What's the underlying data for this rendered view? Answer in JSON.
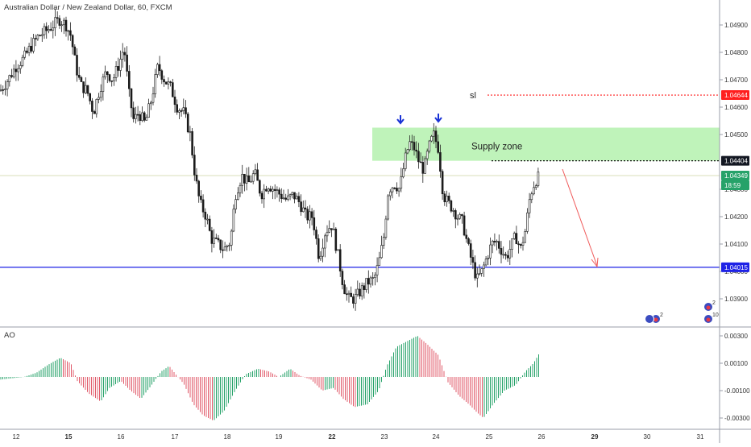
{
  "chart_title": "Australian Dollar / New Zealand Dollar, 60, FXCM",
  "indicator_title": "AO",
  "chart_data": {
    "type": "candlestick",
    "symbol": "AUDNZD",
    "timeframe": "60",
    "source": "FXCM",
    "price_axis": {
      "range": [
        1.0383,
        1.0498
      ],
      "ticks": [
        "1.04900",
        "1.04800",
        "1.04700",
        "1.04600",
        "1.04500",
        "1.04300",
        "1.04200",
        "1.04100",
        "1.04000",
        "1.03900"
      ]
    },
    "time_axis": {
      "ticks": [
        "12",
        "15",
        "16",
        "17",
        "18",
        "19",
        "22",
        "23",
        "24",
        "25",
        "26",
        "29",
        "30",
        "31"
      ],
      "bold_ticks": [
        "15",
        "22",
        "29"
      ]
    },
    "price_labels": [
      {
        "name": "sl",
        "value": "1.04644",
        "color": "#ff1f1f"
      },
      {
        "name": "supply-top",
        "value": "1.04404",
        "color": "#131722"
      },
      {
        "name": "current",
        "value": "1.04349",
        "color": "#26a269"
      },
      {
        "name": "countdown",
        "value": "18:59",
        "color": "#26a269"
      },
      {
        "name": "support",
        "value": "1.04015",
        "color": "#1e22e6"
      }
    ],
    "annotations": {
      "sl_label": "sl",
      "supply_label": "Supply zone",
      "supply_zone": {
        "low": 1.04404,
        "high": 1.04525,
        "from": "23",
        "to": "end"
      },
      "support_line": 1.04015,
      "sl_line": 1.04644,
      "entry_line": 1.04404
    },
    "close_path": [
      [
        0,
        1.0466
      ],
      [
        10,
        1.047
      ],
      [
        20,
        1.0475
      ],
      [
        30,
        1.0478
      ],
      [
        38,
        1.0482
      ],
      [
        48,
        1.0486
      ],
      [
        58,
        1.0488
      ],
      [
        66,
        1.049
      ],
      [
        74,
        1.0492
      ],
      [
        82,
        1.049
      ],
      [
        88,
        1.0486
      ],
      [
        94,
        1.0475
      ],
      [
        100,
        1.0468
      ],
      [
        108,
        1.0466
      ],
      [
        116,
        1.0458
      ],
      [
        124,
        1.0467
      ],
      [
        132,
        1.0473
      ],
      [
        140,
        1.047
      ],
      [
        148,
        1.0476
      ],
      [
        154,
        1.0482
      ],
      [
        160,
        1.0465
      ],
      [
        166,
        1.0455
      ],
      [
        172,
        1.0458
      ],
      [
        180,
        1.0454
      ],
      [
        188,
        1.0463
      ],
      [
        196,
        1.0475
      ],
      [
        204,
        1.047
      ],
      [
        212,
        1.0467
      ],
      [
        220,
        1.046
      ],
      [
        228,
        1.0458
      ],
      [
        236,
        1.045
      ],
      [
        242,
        1.0435
      ],
      [
        248,
        1.0425
      ],
      [
        256,
        1.042
      ],
      [
        262,
        1.0412
      ],
      [
        270,
        1.041
      ],
      [
        278,
        1.0408
      ],
      [
        286,
        1.0411
      ],
      [
        292,
        1.0428
      ],
      [
        300,
        1.0435
      ],
      [
        308,
        1.0432
      ],
      [
        316,
        1.0436
      ],
      [
        324,
        1.0428
      ],
      [
        332,
        1.0432
      ],
      [
        340,
        1.043
      ],
      [
        348,
        1.0428
      ],
      [
        356,
        1.0426
      ],
      [
        364,
        1.0428
      ],
      [
        372,
        1.0425
      ],
      [
        380,
        1.042
      ],
      [
        388,
        1.042
      ],
      [
        396,
        1.0405
      ],
      [
        404,
        1.0415
      ],
      [
        412,
        1.0417
      ],
      [
        420,
        1.0405
      ],
      [
        426,
        1.0395
      ],
      [
        432,
        1.039
      ],
      [
        440,
        1.039
      ],
      [
        448,
        1.0393
      ],
      [
        456,
        1.0396
      ],
      [
        464,
        1.0397
      ],
      [
        470,
        1.0403
      ],
      [
        476,
        1.0412
      ],
      [
        482,
        1.043
      ],
      [
        490,
        1.0432
      ],
      [
        496,
        1.043
      ],
      [
        502,
        1.044
      ],
      [
        508,
        1.0447
      ],
      [
        514,
        1.0445
      ],
      [
        520,
        1.044
      ],
      [
        526,
        1.0437
      ],
      [
        532,
        1.0445
      ],
      [
        538,
        1.045
      ],
      [
        544,
        1.0445
      ],
      [
        550,
        1.0428
      ],
      [
        556,
        1.0425
      ],
      [
        562,
        1.0423
      ],
      [
        568,
        1.042
      ],
      [
        574,
        1.0418
      ],
      [
        580,
        1.041
      ],
      [
        586,
        1.0403
      ],
      [
        592,
        1.0397
      ],
      [
        598,
        1.04
      ],
      [
        604,
        1.0405
      ],
      [
        610,
        1.041
      ],
      [
        616,
        1.0411
      ],
      [
        622,
        1.0408
      ],
      [
        628,
        1.0405
      ],
      [
        634,
        1.0409
      ],
      [
        640,
        1.0413
      ],
      [
        646,
        1.0408
      ],
      [
        652,
        1.0415
      ],
      [
        658,
        1.0428
      ],
      [
        664,
        1.0433
      ],
      [
        670,
        1.0435
      ]
    ],
    "ao": {
      "range": [
        -0.0034,
        0.0034
      ],
      "ticks": [
        "0.00300",
        "0.00100",
        "-0.00100",
        "-0.00300"
      ],
      "values": [
        [
          0,
          -0.0002
        ],
        [
          15,
          -0.0001
        ],
        [
          30,
          0.0
        ],
        [
          45,
          0.0003
        ],
        [
          60,
          0.0009
        ],
        [
          75,
          0.0014
        ],
        [
          88,
          0.001
        ],
        [
          96,
          -0.0003
        ],
        [
          110,
          -0.0012
        ],
        [
          125,
          -0.0018
        ],
        [
          136,
          -0.0008
        ],
        [
          150,
          -0.0003
        ],
        [
          162,
          -0.001
        ],
        [
          175,
          -0.0016
        ],
        [
          188,
          -0.0006
        ],
        [
          200,
          0.0004
        ],
        [
          210,
          0.0008
        ],
        [
          218,
          0.0002
        ],
        [
          228,
          -0.0005
        ],
        [
          240,
          -0.002
        ],
        [
          252,
          -0.0028
        ],
        [
          265,
          -0.0032
        ],
        [
          278,
          -0.0025
        ],
        [
          292,
          -0.001
        ],
        [
          305,
          0.0002
        ],
        [
          320,
          0.0006
        ],
        [
          334,
          0.0004
        ],
        [
          346,
          0.0
        ],
        [
          360,
          0.0006
        ],
        [
          372,
          0.0001
        ],
        [
          386,
          -0.0002
        ],
        [
          400,
          -0.001
        ],
        [
          414,
          -0.0008
        ],
        [
          426,
          -0.0016
        ],
        [
          440,
          -0.0022
        ],
        [
          456,
          -0.002
        ],
        [
          470,
          -0.001
        ],
        [
          480,
          0.0008
        ],
        [
          492,
          0.0022
        ],
        [
          505,
          0.0026
        ],
        [
          518,
          0.003
        ],
        [
          530,
          0.0024
        ],
        [
          544,
          0.0016
        ],
        [
          556,
          -0.0004
        ],
        [
          570,
          -0.0014
        ],
        [
          582,
          -0.002
        ],
        [
          592,
          -0.0026
        ],
        [
          600,
          -0.003
        ],
        [
          612,
          -0.002
        ],
        [
          626,
          -0.001
        ],
        [
          640,
          -0.0006
        ],
        [
          652,
          0.0004
        ],
        [
          662,
          0.001
        ],
        [
          670,
          0.0018
        ]
      ]
    },
    "signal_arrows": [
      "down",
      "down"
    ],
    "event_markers": [
      "2",
      "2",
      "10"
    ]
  }
}
